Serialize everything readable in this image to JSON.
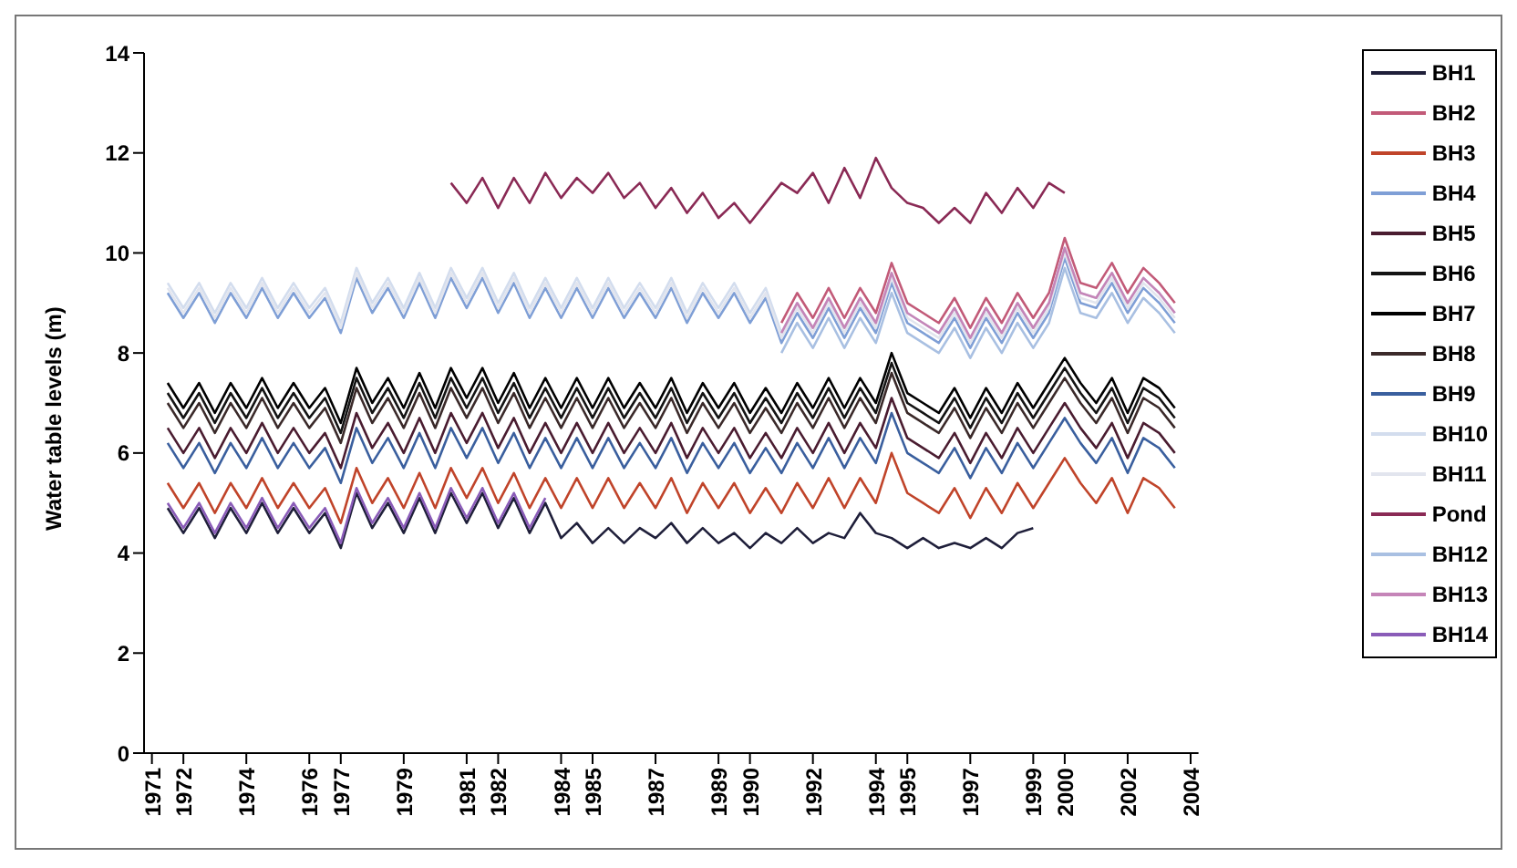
{
  "chart_data": {
    "type": "line",
    "ylabel": "Water table levels (m)",
    "legend": "right",
    "ylim": [
      0,
      14
    ],
    "yticks": [
      0,
      2,
      4,
      6,
      8,
      10,
      12,
      14
    ],
    "xlim": [
      1970.75,
      2004.25
    ],
    "xticks": [
      1971,
      1972,
      1974,
      1976,
      1977,
      1979,
      1981,
      1982,
      1984,
      1985,
      1987,
      1989,
      1990,
      1992,
      1994,
      1995,
      1997,
      1999,
      2000,
      2002,
      2004
    ],
    "x": [
      1971.5,
      1972,
      1972.5,
      1973,
      1973.5,
      1974,
      1974.5,
      1975,
      1975.5,
      1976,
      1976.5,
      1977,
      1977.5,
      1978,
      1978.5,
      1979,
      1979.5,
      1980,
      1980.5,
      1981,
      1981.5,
      1982,
      1982.5,
      1983,
      1983.5,
      1984,
      1984.5,
      1985,
      1985.5,
      1986,
      1986.5,
      1987,
      1987.5,
      1988,
      1988.5,
      1989,
      1989.5,
      1990,
      1990.5,
      1991,
      1991.5,
      1992,
      1992.5,
      1993,
      1993.5,
      1994,
      1994.5,
      1995,
      1995.5,
      1996,
      1996.5,
      1997,
      1997.5,
      1998,
      1998.5,
      1999,
      1999.5,
      2000,
      2000.5,
      2001,
      2001.5,
      2002,
      2002.5,
      2003,
      2003.5
    ],
    "series": [
      {
        "name": "BH1",
        "color": "#1f1f3a",
        "values": [
          4.9,
          4.4,
          4.9,
          4.3,
          4.9,
          4.4,
          5.0,
          4.4,
          4.9,
          4.4,
          4.8,
          4.1,
          5.2,
          4.5,
          5.0,
          4.4,
          5.1,
          4.4,
          5.2,
          4.6,
          5.2,
          4.5,
          5.1,
          4.4,
          5.0,
          4.3,
          4.6,
          4.2,
          4.5,
          4.2,
          4.5,
          4.3,
          4.6,
          4.2,
          4.5,
          4.2,
          4.4,
          4.1,
          4.4,
          4.2,
          4.5,
          4.2,
          4.4,
          4.3,
          4.8,
          4.4,
          4.3,
          4.1,
          4.3,
          4.1,
          4.2,
          4.1,
          4.3,
          4.1,
          4.4,
          4.5,
          null,
          null,
          null,
          null,
          null,
          null,
          null,
          null,
          null
        ]
      },
      {
        "name": "BH2",
        "color": "#c25a78",
        "values": [
          null,
          null,
          null,
          null,
          null,
          null,
          null,
          null,
          null,
          null,
          null,
          null,
          null,
          null,
          null,
          null,
          null,
          null,
          null,
          null,
          null,
          null,
          null,
          null,
          null,
          null,
          null,
          null,
          null,
          null,
          null,
          null,
          null,
          null,
          null,
          null,
          null,
          null,
          null,
          8.6,
          9.2,
          8.7,
          9.3,
          8.7,
          9.3,
          8.8,
          9.8,
          9.0,
          8.8,
          8.6,
          9.1,
          8.5,
          9.1,
          8.6,
          9.2,
          8.7,
          9.2,
          10.3,
          9.4,
          9.3,
          9.8,
          9.2,
          9.7,
          9.4,
          9.0
        ]
      },
      {
        "name": "BH3",
        "color": "#c0442a",
        "values": [
          5.4,
          4.9,
          5.4,
          4.8,
          5.4,
          4.9,
          5.5,
          4.9,
          5.4,
          4.9,
          5.3,
          4.6,
          5.7,
          5.0,
          5.5,
          4.9,
          5.6,
          4.9,
          5.7,
          5.1,
          5.7,
          5.0,
          5.6,
          4.9,
          5.5,
          4.9,
          5.5,
          4.9,
          5.5,
          4.9,
          5.4,
          4.9,
          5.5,
          4.8,
          5.4,
          4.9,
          5.4,
          4.8,
          5.3,
          4.8,
          5.4,
          4.9,
          5.5,
          4.9,
          5.5,
          5.0,
          6.0,
          5.2,
          5.0,
          4.8,
          5.3,
          4.7,
          5.3,
          4.8,
          5.4,
          4.9,
          5.4,
          5.9,
          5.4,
          5.0,
          5.5,
          4.8,
          5.5,
          5.3,
          4.9
        ]
      },
      {
        "name": "BH4",
        "color": "#7f9fd6",
        "values": [
          9.2,
          8.7,
          9.2,
          8.6,
          9.2,
          8.7,
          9.3,
          8.7,
          9.2,
          8.7,
          9.1,
          8.4,
          9.5,
          8.8,
          9.3,
          8.7,
          9.4,
          8.7,
          9.5,
          8.9,
          9.5,
          8.8,
          9.4,
          8.7,
          9.3,
          8.7,
          9.3,
          8.7,
          9.3,
          8.7,
          9.2,
          8.7,
          9.3,
          8.6,
          9.2,
          8.7,
          9.2,
          8.6,
          9.1,
          8.2,
          8.8,
          8.3,
          8.9,
          8.3,
          8.9,
          8.4,
          9.4,
          8.6,
          8.4,
          8.2,
          8.7,
          8.1,
          8.7,
          8.2,
          8.8,
          8.3,
          8.8,
          9.9,
          9.0,
          8.9,
          9.4,
          8.8,
          9.3,
          9.0,
          8.6
        ]
      },
      {
        "name": "BH5",
        "color": "#4a1c30",
        "values": [
          6.5,
          6.0,
          6.5,
          5.9,
          6.5,
          6.0,
          6.6,
          6.0,
          6.5,
          6.0,
          6.4,
          5.7,
          6.8,
          6.1,
          6.6,
          6.0,
          6.7,
          6.0,
          6.8,
          6.2,
          6.8,
          6.1,
          6.7,
          6.0,
          6.6,
          6.0,
          6.6,
          6.0,
          6.6,
          6.0,
          6.5,
          6.0,
          6.6,
          5.9,
          6.5,
          6.0,
          6.5,
          5.9,
          6.4,
          5.9,
          6.5,
          6.0,
          6.6,
          6.0,
          6.6,
          6.1,
          7.1,
          6.3,
          6.1,
          5.9,
          6.4,
          5.8,
          6.4,
          5.9,
          6.5,
          6.0,
          6.5,
          7.0,
          6.5,
          6.1,
          6.6,
          5.9,
          6.6,
          6.4,
          6.0
        ]
      },
      {
        "name": "BH6",
        "color": "#141414",
        "values": [
          7.2,
          6.7,
          7.2,
          6.6,
          7.2,
          6.7,
          7.3,
          6.7,
          7.2,
          6.7,
          7.1,
          6.4,
          7.5,
          6.8,
          7.3,
          6.7,
          7.4,
          6.7,
          7.5,
          6.9,
          7.5,
          6.8,
          7.4,
          6.7,
          7.3,
          6.7,
          7.3,
          6.7,
          7.3,
          6.7,
          7.2,
          6.7,
          7.3,
          6.6,
          7.2,
          6.7,
          7.2,
          6.6,
          7.1,
          6.6,
          7.2,
          6.7,
          7.3,
          6.7,
          7.3,
          6.8,
          7.8,
          7.0,
          6.8,
          6.6,
          7.1,
          6.5,
          7.1,
          6.6,
          7.2,
          6.7,
          7.2,
          7.7,
          7.2,
          6.8,
          7.3,
          6.6,
          7.3,
          7.1,
          6.7
        ]
      },
      {
        "name": "BH7",
        "color": "#000000",
        "values": [
          7.4,
          6.9,
          7.4,
          6.8,
          7.4,
          6.9,
          7.5,
          6.9,
          7.4,
          6.9,
          7.3,
          6.6,
          7.7,
          7.0,
          7.5,
          6.9,
          7.6,
          6.9,
          7.7,
          7.1,
          7.7,
          7.0,
          7.6,
          6.9,
          7.5,
          6.9,
          7.5,
          6.9,
          7.5,
          6.9,
          7.4,
          6.9,
          7.5,
          6.8,
          7.4,
          6.9,
          7.4,
          6.8,
          7.3,
          6.8,
          7.4,
          6.9,
          7.5,
          6.9,
          7.5,
          7.0,
          8.0,
          7.2,
          7.0,
          6.8,
          7.3,
          6.7,
          7.3,
          6.8,
          7.4,
          6.9,
          7.4,
          7.9,
          7.4,
          7.0,
          7.5,
          6.8,
          7.5,
          7.3,
          6.9
        ]
      },
      {
        "name": "BH8",
        "color": "#3b2a2a",
        "values": [
          7.0,
          6.5,
          7.0,
          6.4,
          7.0,
          6.5,
          7.1,
          6.5,
          7.0,
          6.5,
          6.9,
          6.2,
          7.3,
          6.6,
          7.1,
          6.5,
          7.2,
          6.5,
          7.3,
          6.7,
          7.3,
          6.6,
          7.2,
          6.5,
          7.1,
          6.5,
          7.1,
          6.5,
          7.1,
          6.5,
          7.0,
          6.5,
          7.1,
          6.4,
          7.0,
          6.5,
          7.0,
          6.4,
          6.9,
          6.4,
          7.0,
          6.5,
          7.1,
          6.5,
          7.1,
          6.6,
          7.6,
          6.8,
          6.6,
          6.4,
          6.9,
          6.3,
          6.9,
          6.4,
          7.0,
          6.5,
          7.0,
          7.5,
          7.0,
          6.6,
          7.1,
          6.4,
          7.1,
          6.9,
          6.5
        ]
      },
      {
        "name": "BH9",
        "color": "#3a5f9e",
        "values": [
          6.2,
          5.7,
          6.2,
          5.6,
          6.2,
          5.7,
          6.3,
          5.7,
          6.2,
          5.7,
          6.1,
          5.4,
          6.5,
          5.8,
          6.3,
          5.7,
          6.4,
          5.7,
          6.5,
          5.9,
          6.5,
          5.8,
          6.4,
          5.7,
          6.3,
          5.7,
          6.3,
          5.7,
          6.3,
          5.7,
          6.2,
          5.7,
          6.3,
          5.6,
          6.2,
          5.7,
          6.2,
          5.6,
          6.1,
          5.6,
          6.2,
          5.7,
          6.3,
          5.7,
          6.3,
          5.8,
          6.8,
          6.0,
          5.8,
          5.6,
          6.1,
          5.5,
          6.1,
          5.6,
          6.2,
          5.7,
          6.2,
          6.7,
          6.2,
          5.8,
          6.3,
          5.6,
          6.3,
          6.1,
          5.7
        ]
      },
      {
        "name": "BH10",
        "color": "#d3ddee",
        "values": [
          9.4,
          8.9,
          9.4,
          8.8,
          9.4,
          8.9,
          9.5,
          8.9,
          9.4,
          8.9,
          9.3,
          8.6,
          9.7,
          9.0,
          9.5,
          8.9,
          9.6,
          8.9,
          9.7,
          9.1,
          9.7,
          9.0,
          9.6,
          8.9,
          9.5,
          8.9,
          9.5,
          8.9,
          9.5,
          8.9,
          9.4,
          8.9,
          9.5,
          8.8,
          9.4,
          8.9,
          9.4,
          8.8,
          9.3,
          8.4,
          9.0,
          8.5,
          9.1,
          8.5,
          9.1,
          8.6,
          9.6,
          8.8,
          8.6,
          8.4,
          8.9,
          8.3,
          8.9,
          8.4,
          9.0,
          8.5,
          9.0,
          10.1,
          9.2,
          9.1,
          9.6,
          9.0,
          9.5,
          9.2,
          8.8
        ]
      },
      {
        "name": "BH11",
        "color": "#e2e5ee",
        "values": [
          9.3,
          8.8,
          9.3,
          8.7,
          9.3,
          8.8,
          9.4,
          8.8,
          9.3,
          8.8,
          9.2,
          8.5,
          9.6,
          8.9,
          9.4,
          8.8,
          9.5,
          8.8,
          9.6,
          9.0,
          9.6,
          8.9,
          9.5,
          8.8,
          9.4,
          8.8,
          9.4,
          8.8,
          9.4,
          8.8,
          9.3,
          8.8,
          9.4,
          8.7,
          9.3,
          8.8,
          9.3,
          8.7,
          9.2,
          8.3,
          8.9,
          8.4,
          9.0,
          8.4,
          9.0,
          8.5,
          9.5,
          8.7,
          8.5,
          8.3,
          8.8,
          8.2,
          8.8,
          8.3,
          8.9,
          8.4,
          8.9,
          10.0,
          9.1,
          9.0,
          9.5,
          8.9,
          9.4,
          9.1,
          8.7
        ]
      },
      {
        "name": "Pond",
        "color": "#8a2a55",
        "values": [
          null,
          null,
          null,
          null,
          null,
          null,
          null,
          null,
          null,
          null,
          null,
          null,
          null,
          null,
          null,
          null,
          null,
          null,
          11.4,
          11.0,
          11.5,
          10.9,
          11.5,
          11.0,
          11.6,
          11.1,
          11.5,
          11.2,
          11.6,
          11.1,
          11.4,
          10.9,
          11.3,
          10.8,
          11.2,
          10.7,
          11.0,
          10.6,
          11.0,
          11.4,
          11.2,
          11.6,
          11.0,
          11.7,
          11.1,
          11.9,
          11.3,
          11.0,
          10.9,
          10.6,
          10.9,
          10.6,
          11.2,
          10.8,
          11.3,
          10.9,
          11.4,
          11.2,
          null,
          null,
          null,
          null,
          null,
          null,
          null
        ]
      },
      {
        "name": "BH12",
        "color": "#a9c0e2",
        "values": [
          null,
          null,
          null,
          null,
          null,
          null,
          null,
          null,
          null,
          null,
          null,
          null,
          null,
          null,
          null,
          null,
          null,
          null,
          null,
          null,
          null,
          null,
          null,
          null,
          null,
          null,
          null,
          null,
          null,
          null,
          null,
          null,
          null,
          null,
          null,
          null,
          null,
          null,
          null,
          8.0,
          8.6,
          8.1,
          8.7,
          8.1,
          8.7,
          8.2,
          9.2,
          8.4,
          8.2,
          8.0,
          8.5,
          7.9,
          8.5,
          8.0,
          8.6,
          8.1,
          8.6,
          9.7,
          8.8,
          8.7,
          9.2,
          8.6,
          9.1,
          8.8,
          8.4
        ]
      },
      {
        "name": "BH13",
        "color": "#c585b8",
        "values": [
          null,
          null,
          null,
          null,
          null,
          null,
          null,
          null,
          null,
          null,
          null,
          null,
          null,
          null,
          null,
          null,
          null,
          null,
          null,
          null,
          null,
          null,
          null,
          null,
          null,
          null,
          null,
          null,
          null,
          null,
          null,
          null,
          null,
          null,
          null,
          null,
          null,
          null,
          null,
          8.4,
          9.0,
          8.5,
          9.1,
          8.5,
          9.1,
          8.6,
          9.6,
          8.8,
          8.6,
          8.4,
          8.9,
          8.3,
          8.9,
          8.4,
          9.0,
          8.5,
          9.0,
          10.1,
          9.2,
          9.1,
          9.6,
          9.0,
          9.5,
          9.2,
          8.8
        ]
      },
      {
        "name": "BH14",
        "color": "#8a5cb8",
        "values": [
          5.0,
          4.5,
          5.0,
          4.4,
          5.0,
          4.5,
          5.1,
          4.5,
          5.0,
          4.5,
          4.9,
          4.2,
          5.3,
          4.6,
          5.1,
          4.5,
          5.2,
          4.5,
          5.3,
          4.7,
          5.3,
          4.6,
          5.2,
          4.5,
          5.1,
          null,
          null,
          null,
          null,
          null,
          null,
          null,
          null,
          null,
          null,
          null,
          null,
          null,
          null,
          null,
          null,
          null,
          null,
          null,
          null,
          null,
          null,
          null,
          null,
          null,
          null,
          null,
          null,
          null,
          null,
          null,
          null,
          null,
          null,
          null,
          null,
          null,
          null,
          null,
          null
        ]
      }
    ]
  }
}
